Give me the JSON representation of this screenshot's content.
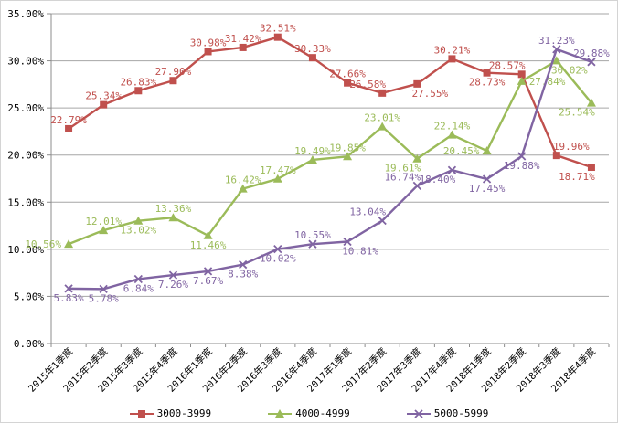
{
  "chart_data": {
    "type": "line",
    "title": "",
    "categories": [
      "2015年1季度",
      "2015年2季度",
      "2015年3季度",
      "2015年4季度",
      "2016年1季度",
      "2016年2季度",
      "2016年3季度",
      "2016年4季度",
      "2017年1季度",
      "2017年2季度",
      "2017年3季度",
      "2017年4季度",
      "2018年1季度",
      "2018年2季度",
      "2018年3季度",
      "2018年4季度"
    ],
    "y_axis": {
      "min": 0,
      "max": 35,
      "step": 5,
      "tick_labels": [
        "0.00%",
        "5.00%",
        "10.00%",
        "15.00%",
        "20.00%",
        "25.00%",
        "30.00%",
        "35.00%"
      ],
      "format": "percent"
    },
    "grid": true,
    "legend_position": "bottom",
    "series": [
      {
        "name": "3000-3999",
        "color": "#C0504D",
        "marker": "square",
        "values": [
          22.79,
          25.34,
          26.83,
          27.9,
          30.98,
          31.42,
          32.51,
          30.33,
          27.66,
          26.58,
          27.55,
          30.21,
          28.73,
          28.57,
          19.96,
          18.71
        ],
        "labels": [
          "22.79%",
          "25.34%",
          "26.83%",
          "27.90%",
          "30.98%",
          "31.42%",
          "32.51%",
          "30.33%",
          "27.66%",
          "26.58%",
          "27.55%",
          "30.21%",
          "28.73%",
          "28.57%",
          "19.96%",
          "18.71%"
        ],
        "label_positions": [
          "a",
          "a",
          "a",
          "a",
          "a",
          "a",
          "a",
          "a",
          "a",
          "al",
          "br",
          "a",
          "b",
          "al",
          "ar",
          "bl"
        ]
      },
      {
        "name": "4000-4999",
        "color": "#9BBB59",
        "marker": "triangle",
        "values": [
          10.56,
          12.01,
          13.02,
          13.36,
          11.46,
          16.42,
          17.47,
          19.49,
          19.85,
          23.01,
          19.61,
          22.14,
          20.45,
          27.84,
          30.02,
          25.54
        ],
        "labels": [
          "10.56%",
          "12.01%",
          "13.02%",
          "13.36%",
          "11.46%",
          "16.42%",
          "17.47%",
          "19.49%",
          "19.85%",
          "23.01%",
          "19.61%",
          "22.14%",
          "20.45%",
          "27.84%",
          "30.02%",
          "25.54%"
        ],
        "label_positions": [
          "l",
          "a",
          "b",
          "a",
          "b",
          "a",
          "a",
          "a",
          "a",
          "a",
          "bl",
          "a",
          "l",
          "r",
          "br",
          "bl"
        ]
      },
      {
        "name": "5000-5999",
        "color": "#8064A2",
        "marker": "x",
        "values": [
          5.83,
          5.78,
          6.84,
          7.26,
          7.67,
          8.38,
          10.02,
          10.55,
          10.81,
          13.04,
          16.74,
          18.4,
          17.45,
          19.88,
          31.23,
          29.88
        ],
        "labels": [
          "5.83%",
          "5.78%",
          "6.84%",
          "7.26%",
          "7.67%",
          "8.38%",
          "10.02%",
          "10.55%",
          "10.81%",
          "13.04%",
          "16.74%",
          "18.40%",
          "17.45%",
          "19.88%",
          "31.23%",
          "29.88%"
        ],
        "label_positions": [
          "b",
          "b",
          "b",
          "b",
          "b",
          "b",
          "b",
          "a",
          "br",
          "al",
          "al",
          "bl",
          "b",
          "b",
          "a",
          "a"
        ]
      }
    ]
  },
  "colors": {
    "background": "#FFFFFF",
    "grid": "#A6A6A6",
    "axis": "#8C8C8C",
    "tick_text": "#000000"
  }
}
